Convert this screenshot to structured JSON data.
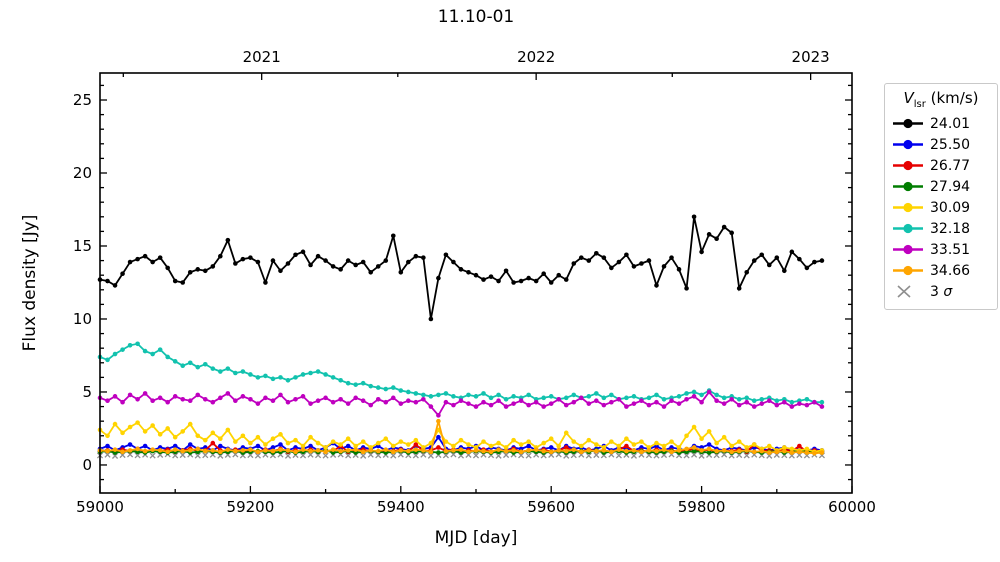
{
  "title": "11.10-01",
  "axes": {
    "x": {
      "label": "MJD [day]",
      "major_ticks": [
        59000,
        59200,
        59400,
        59600,
        59800,
        60000
      ],
      "minor_ticks": [
        59100,
        59300,
        59500,
        59700,
        59900
      ]
    },
    "y": {
      "label": "Flux density [Jy]",
      "major_ticks": [
        0,
        5,
        10,
        15,
        20,
        25
      ],
      "minor_step": 1
    },
    "top": {
      "major_ticks": [
        {
          "mjd": 59215,
          "label": "2021"
        },
        {
          "mjd": 59580,
          "label": "2022"
        },
        {
          "mjd": 59945,
          "label": "2023"
        }
      ],
      "minor_ticks": [
        59031,
        59396,
        59761
      ]
    }
  },
  "legend": {
    "title_v": "V",
    "title_sub": "lsr",
    "title_units": " (km/s)",
    "sigma_prefix": "3 ",
    "sigma_symbol": "σ"
  },
  "chart_data": {
    "type": "line",
    "title": "11.10-01",
    "xlabel": "MJD [day]",
    "ylabel": "Flux density [Jy]",
    "xlim": [
      59000,
      60000
    ],
    "ylim": [
      -1.92,
      26.85
    ],
    "x_start": 59000,
    "x_step": 10,
    "series": [
      {
        "name": "24.01",
        "color": "#000000",
        "values": [
          12.7,
          12.6,
          12.3,
          13.1,
          13.9,
          14.1,
          14.3,
          13.9,
          14.2,
          13.5,
          12.6,
          12.5,
          13.2,
          13.4,
          13.3,
          13.6,
          14.3,
          15.4,
          13.8,
          14.1,
          14.2,
          13.9,
          12.5,
          14.0,
          13.3,
          13.8,
          14.4,
          14.6,
          13.7,
          14.3,
          14.0,
          13.6,
          13.4,
          14.0,
          13.7,
          13.9,
          13.2,
          13.6,
          14.0,
          15.7,
          13.2,
          13.9,
          14.3,
          14.2,
          10.0,
          12.8,
          14.4,
          13.9,
          13.4,
          13.2,
          13.0,
          12.7,
          12.9,
          12.6,
          13.3,
          12.5,
          12.6,
          12.8,
          12.6,
          13.1,
          12.5,
          13.0,
          12.7,
          13.8,
          14.2,
          14.0,
          14.5,
          14.2,
          13.5,
          13.9,
          14.4,
          13.6,
          13.8,
          14.0,
          12.3,
          13.6,
          14.2,
          13.4,
          12.1,
          17.0,
          14.6,
          15.8,
          15.5,
          16.3,
          15.9,
          12.1,
          13.2,
          14.0,
          14.4,
          13.7,
          14.2,
          13.3,
          14.6,
          14.1,
          13.5,
          13.9,
          14.0
        ]
      },
      {
        "name": "25.50",
        "color": "#0000ee",
        "values": [
          1.1,
          1.3,
          1.0,
          1.2,
          1.4,
          1.1,
          1.3,
          1.0,
          1.2,
          1.1,
          1.3,
          1.0,
          1.4,
          1.1,
          1.2,
          1.0,
          1.3,
          1.1,
          1.0,
          1.2,
          1.1,
          1.3,
          1.0,
          1.2,
          1.4,
          1.0,
          1.2,
          1.1,
          1.3,
          1.0,
          1.2,
          1.5,
          1.1,
          1.3,
          1.0,
          1.2,
          1.1,
          1.3,
          1.0,
          1.2,
          1.1,
          1.0,
          1.3,
          1.1,
          1.2,
          1.9,
          1.1,
          1.0,
          1.2,
          1.1,
          1.3,
          1.0,
          1.2,
          1.1,
          1.0,
          1.2,
          1.1,
          1.3,
          1.0,
          1.1,
          1.2,
          1.0,
          1.3,
          1.1,
          1.2,
          1.0,
          1.1,
          1.3,
          1.0,
          1.2,
          1.1,
          1.0,
          1.2,
          1.1,
          1.3,
          1.0,
          1.2,
          1.1,
          1.0,
          1.3,
          1.2,
          1.4,
          1.1,
          1.0,
          1.2,
          1.1,
          1.0,
          1.2,
          1.1,
          1.0,
          1.1,
          1.2,
          1.0,
          1.1,
          1.0,
          1.1,
          1.0
        ]
      },
      {
        "name": "26.77",
        "color": "#e60000",
        "values": [
          0.95,
          1.0,
          0.9,
          1.05,
          0.95,
          1.1,
          0.9,
          1.0,
          0.95,
          1.05,
          0.9,
          1.0,
          1.1,
          0.95,
          1.0,
          1.5,
          1.0,
          0.9,
          1.05,
          0.95,
          1.0,
          0.9,
          1.05,
          0.95,
          1.1,
          0.9,
          1.0,
          0.95,
          1.05,
          0.9,
          1.0,
          0.95,
          1.3,
          0.9,
          1.0,
          1.05,
          0.95,
          0.9,
          1.0,
          0.95,
          1.05,
          0.9,
          1.4,
          0.95,
          1.0,
          1.2,
          0.95,
          1.05,
          0.9,
          1.0,
          0.95,
          1.05,
          0.9,
          1.0,
          0.95,
          1.1,
          0.9,
          1.0,
          0.95,
          1.05,
          0.9,
          1.0,
          1.2,
          0.95,
          0.9,
          1.05,
          0.95,
          1.0,
          0.9,
          1.05,
          1.3,
          0.95,
          1.0,
          0.9,
          1.05,
          0.95,
          1.0,
          0.9,
          1.0,
          1.1,
          0.95,
          1.05,
          0.9,
          1.0,
          0.95,
          1.05,
          0.9,
          1.4,
          0.95,
          1.0,
          0.9,
          1.05,
          0.95,
          1.3,
          0.9,
          1.0,
          0.95
        ]
      },
      {
        "name": "27.94",
        "color": "#007d00",
        "values": [
          0.9,
          0.95,
          0.85,
          0.9,
          0.95,
          0.9,
          0.85,
          0.95,
          0.9,
          0.85,
          0.9,
          0.95,
          0.85,
          0.9,
          0.95,
          0.9,
          0.85,
          0.9,
          0.95,
          0.85,
          0.9,
          0.95,
          0.9,
          0.85,
          0.9,
          0.95,
          0.85,
          0.9,
          0.95,
          0.9,
          1.0,
          0.85,
          0.9,
          0.95,
          0.85,
          0.9,
          0.95,
          0.9,
          0.85,
          0.9,
          0.95,
          0.85,
          0.9,
          0.95,
          0.9,
          0.85,
          0.9,
          0.95,
          0.85,
          0.9,
          0.95,
          0.9,
          0.85,
          0.9,
          0.95,
          0.85,
          0.9,
          0.95,
          0.9,
          0.85,
          0.9,
          0.95,
          0.85,
          0.9,
          0.95,
          0.9,
          1.0,
          0.85,
          0.9,
          0.95,
          0.85,
          0.9,
          0.95,
          0.9,
          0.85,
          0.9,
          0.95,
          0.85,
          0.9,
          0.95,
          0.9,
          0.85,
          0.9,
          0.95,
          0.85,
          0.9,
          0.95,
          0.9,
          0.85,
          0.9,
          0.95,
          0.85,
          0.9,
          0.95,
          0.9,
          0.85,
          0.9
        ]
      },
      {
        "name": "30.09",
        "color": "#ffd400",
        "values": [
          2.4,
          2.0,
          2.8,
          2.2,
          2.6,
          2.9,
          2.3,
          2.7,
          2.1,
          2.5,
          1.9,
          2.3,
          2.8,
          2.0,
          1.7,
          2.2,
          1.8,
          2.4,
          1.6,
          2.0,
          1.5,
          1.9,
          1.4,
          1.8,
          2.1,
          1.5,
          1.7,
          1.3,
          1.9,
          1.5,
          1.2,
          1.6,
          1.4,
          1.8,
          1.3,
          1.6,
          1.2,
          1.5,
          1.8,
          1.3,
          1.6,
          1.4,
          1.7,
          1.2,
          1.5,
          2.4,
          1.6,
          1.3,
          1.7,
          1.4,
          1.2,
          1.6,
          1.3,
          1.5,
          1.2,
          1.7,
          1.4,
          1.6,
          1.2,
          1.5,
          1.8,
          1.3,
          2.2,
          1.6,
          1.3,
          1.7,
          1.4,
          1.2,
          1.6,
          1.3,
          1.8,
          1.4,
          1.6,
          1.2,
          1.5,
          1.3,
          1.6,
          1.2,
          2.0,
          2.6,
          1.8,
          2.3,
          1.5,
          1.9,
          1.3,
          1.6,
          1.2,
          1.4,
          1.1,
          1.3,
          1.0,
          1.2,
          1.1,
          1.0,
          1.1,
          0.9,
          1.0
        ]
      },
      {
        "name": "32.18",
        "color": "#12c2ae",
        "values": [
          7.4,
          7.2,
          7.6,
          7.9,
          8.2,
          8.3,
          7.8,
          7.6,
          7.9,
          7.4,
          7.1,
          6.8,
          7.0,
          6.7,
          6.9,
          6.6,
          6.4,
          6.6,
          6.3,
          6.4,
          6.2,
          6.0,
          6.1,
          5.9,
          6.0,
          5.8,
          6.0,
          6.2,
          6.3,
          6.4,
          6.2,
          6.0,
          5.8,
          5.6,
          5.5,
          5.6,
          5.4,
          5.3,
          5.2,
          5.3,
          5.1,
          5.0,
          4.9,
          4.8,
          4.7,
          4.8,
          4.9,
          4.7,
          4.6,
          4.8,
          4.7,
          4.9,
          4.6,
          4.8,
          4.5,
          4.7,
          4.6,
          4.8,
          4.5,
          4.6,
          4.7,
          4.5,
          4.6,
          4.8,
          4.6,
          4.7,
          4.9,
          4.6,
          4.8,
          4.5,
          4.6,
          4.7,
          4.5,
          4.6,
          4.8,
          4.5,
          4.6,
          4.7,
          4.9,
          5.0,
          4.8,
          5.1,
          4.8,
          4.6,
          4.7,
          4.5,
          4.6,
          4.4,
          4.5,
          4.6,
          4.4,
          4.5,
          4.3,
          4.4,
          4.5,
          4.3,
          4.3
        ]
      },
      {
        "name": "33.51",
        "color": "#bf00bf",
        "values": [
          4.6,
          4.4,
          4.7,
          4.3,
          4.8,
          4.5,
          4.9,
          4.4,
          4.6,
          4.3,
          4.7,
          4.5,
          4.4,
          4.8,
          4.5,
          4.3,
          4.6,
          4.9,
          4.4,
          4.7,
          4.5,
          4.2,
          4.6,
          4.4,
          4.8,
          4.3,
          4.5,
          4.7,
          4.2,
          4.4,
          4.6,
          4.3,
          4.5,
          4.2,
          4.6,
          4.4,
          4.1,
          4.5,
          4.3,
          4.6,
          4.2,
          4.4,
          4.3,
          4.5,
          4.0,
          3.4,
          4.3,
          4.1,
          4.4,
          4.2,
          4.0,
          4.3,
          4.1,
          4.4,
          4.0,
          4.2,
          4.4,
          4.1,
          4.3,
          4.0,
          4.2,
          4.5,
          4.1,
          4.3,
          4.6,
          4.2,
          4.4,
          4.1,
          4.3,
          4.5,
          4.0,
          4.2,
          4.4,
          4.1,
          4.3,
          4.0,
          4.4,
          4.2,
          4.5,
          4.7,
          4.3,
          5.0,
          4.4,
          4.2,
          4.5,
          4.1,
          4.3,
          4.0,
          4.2,
          4.4,
          4.1,
          4.3,
          4.0,
          4.2,
          4.1,
          4.3,
          4.0
        ]
      },
      {
        "name": "34.66",
        "color": "#ffa500",
        "values": [
          1.0,
          0.95,
          1.05,
          0.9,
          1.0,
          1.1,
          0.95,
          1.05,
          1.0,
          0.9,
          1.05,
          0.95,
          1.0,
          1.1,
          0.95,
          1.0,
          0.9,
          1.05,
          0.95,
          1.0,
          1.05,
          0.9,
          1.0,
          0.95,
          1.05,
          1.0,
          0.9,
          1.05,
          0.95,
          1.0,
          0.9,
          1.05,
          0.95,
          1.0,
          1.05,
          0.9,
          1.0,
          0.95,
          1.05,
          0.9,
          1.0,
          0.95,
          1.05,
          1.0,
          0.9,
          3.0,
          0.95,
          1.0,
          1.05,
          0.9,
          1.0,
          0.95,
          0.9,
          1.05,
          0.95,
          1.0,
          0.9,
          1.0,
          1.05,
          0.95,
          0.9,
          1.0,
          0.95,
          1.05,
          0.9,
          1.0,
          0.95,
          1.0,
          0.9,
          1.05,
          0.95,
          1.0,
          0.9,
          1.0,
          0.95,
          1.05,
          0.9,
          1.0,
          1.1,
          1.2,
          1.0,
          1.1,
          0.95,
          1.0,
          0.9,
          0.95,
          1.0,
          0.9,
          0.95,
          0.85,
          0.9,
          0.95,
          0.85,
          0.9,
          0.85,
          0.8,
          0.85
        ]
      }
    ],
    "sigma": {
      "name": "3 σ",
      "color": "#8e8e8e",
      "values": [
        0.65,
        0.7,
        0.62,
        0.68,
        0.72,
        0.66,
        0.7,
        0.64,
        0.69,
        0.73,
        0.65,
        0.68,
        0.71,
        0.64,
        0.67,
        0.7,
        0.63,
        0.69,
        0.72,
        0.65,
        0.68,
        0.64,
        0.7,
        0.66,
        0.71,
        0.63,
        0.68,
        0.65,
        0.7,
        0.67,
        0.64,
        0.69,
        0.72,
        0.65,
        0.68,
        0.63,
        0.7,
        0.66,
        0.69,
        0.64,
        0.71,
        0.67,
        0.65,
        0.7,
        0.63,
        0.68,
        0.66,
        0.72,
        0.64,
        0.69,
        0.65,
        0.7,
        0.67,
        0.63,
        0.68,
        0.71,
        0.66,
        0.64,
        0.7,
        0.65,
        0.69,
        0.72,
        0.63,
        0.67,
        0.7,
        0.64,
        0.68,
        0.66,
        0.71,
        0.65,
        0.69,
        0.63,
        0.7,
        0.67,
        0.64,
        0.68,
        0.72,
        0.66,
        0.65,
        0.7,
        0.63,
        0.69,
        0.67,
        0.71,
        0.64,
        0.68,
        0.65,
        0.7,
        0.66,
        0.63,
        0.69,
        0.67,
        0.64,
        0.68,
        0.65,
        0.7,
        0.66
      ]
    },
    "legend_position": "right",
    "grid": false
  }
}
